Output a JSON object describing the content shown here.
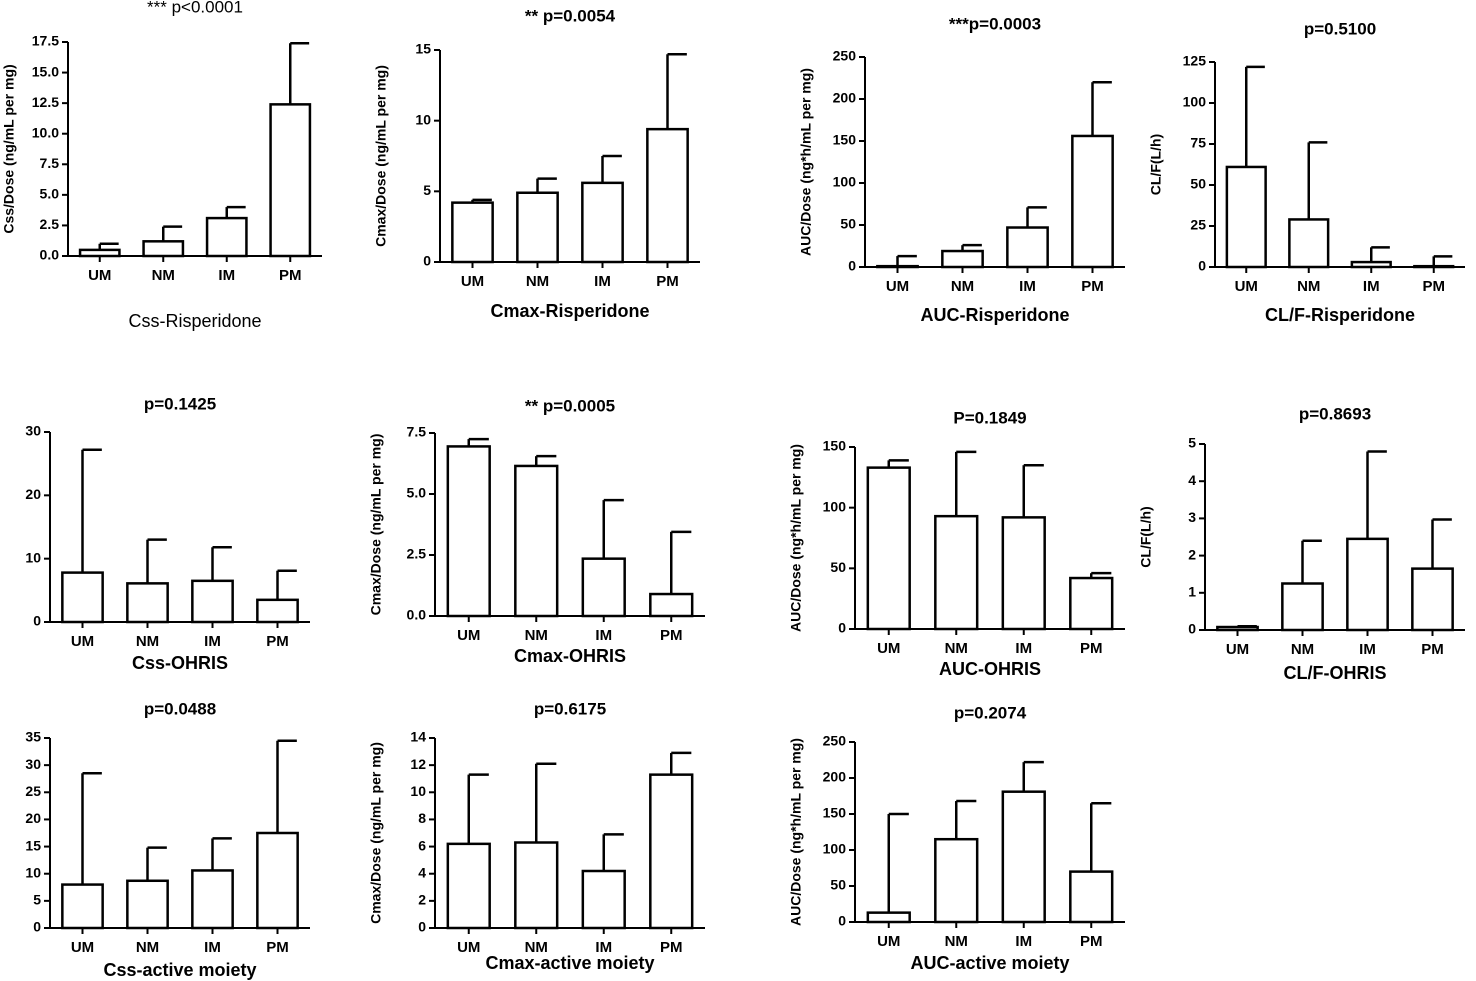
{
  "chart_data": [
    {
      "type": "bar",
      "title": "***  p<0.0001",
      "x_label": "Css-Risperidone",
      "y_label": "Css/Dose (ng/mL per mg)",
      "categories": [
        "UM",
        "NM",
        "IM",
        "PM"
      ],
      "values": [
        0.5,
        1.2,
        3.1,
        12.4
      ],
      "errors": [
        0.5,
        1.2,
        0.9,
        5.0
      ],
      "ylim": [
        0,
        17.5
      ],
      "yticks": [
        {
          "value": 0,
          "label": "0.0"
        },
        2.5,
        {
          "value": 5,
          "label": "5.0"
        },
        7.5,
        {
          "value": 10,
          "label": "10.0"
        },
        12.5,
        {
          "value": 15,
          "label": "15.0"
        },
        17.5
      ]
    },
    {
      "type": "bar",
      "title": "** p=0.0054",
      "x_label": "Cmax-Risperidone",
      "y_label": "Cmax/Dose (ng/mL per mg)",
      "categories": [
        "UM",
        "NM",
        "IM",
        "PM"
      ],
      "values": [
        4.2,
        4.9,
        5.6,
        9.4
      ],
      "errors": [
        0.2,
        1.0,
        1.9,
        5.3
      ],
      "ylim": [
        0,
        15
      ],
      "yticks": [
        0,
        5,
        10,
        15
      ]
    },
    {
      "type": "bar",
      "title": "***p=0.0003",
      "x_label": "AUC-Risperidone",
      "y_label": "AUC/Dose (ng*h/mL per mg)",
      "categories": [
        "UM",
        "NM",
        "IM",
        "PM"
      ],
      "values": [
        1,
        19,
        47,
        156
      ],
      "errors": [
        12,
        7,
        24,
        64
      ],
      "ylim": [
        0,
        250
      ],
      "yticks": [
        0,
        50,
        100,
        150,
        200,
        250
      ]
    },
    {
      "type": "bar",
      "title": "p=0.5100",
      "x_label": "CL/F-Risperidone",
      "y_label": "CL/F(L/h)",
      "categories": [
        "UM",
        "NM",
        "IM",
        "PM"
      ],
      "values": [
        61,
        29,
        3,
        0.5
      ],
      "errors": [
        61,
        47,
        9,
        6
      ],
      "ylim": [
        0,
        125
      ],
      "yticks": [
        0,
        25,
        50,
        75,
        100,
        125
      ]
    },
    {
      "type": "bar",
      "title": "p=0.1425",
      "x_label": "Css-OHRIS",
      "y_label": "Css/Dose (ng/mL per mg)",
      "categories": [
        "UM",
        "NM",
        "IM",
        "PM"
      ],
      "values": [
        7.8,
        6.1,
        6.5,
        3.5
      ],
      "errors": [
        19.4,
        6.9,
        5.3,
        4.6
      ],
      "ylim": [
        0,
        30
      ],
      "yticks": [
        0,
        10,
        20,
        30
      ]
    },
    {
      "type": "bar",
      "title": "** p=0.0005",
      "x_label": "Cmax-OHRIS",
      "y_label": "Cmax/Dose (ng/mL per mg)",
      "categories": [
        "UM",
        "NM",
        "IM",
        "PM"
      ],
      "values": [
        6.95,
        6.15,
        2.35,
        0.9
      ],
      "errors": [
        0.3,
        0.4,
        2.4,
        2.55
      ],
      "ylim": [
        0,
        7.5
      ],
      "yticks": [
        {
          "value": 0,
          "label": "0.0"
        },
        2.5,
        {
          "value": 5,
          "label": "5.0"
        },
        7.5
      ]
    },
    {
      "type": "bar",
      "title": "P=0.1849",
      "x_label": "AUC-OHRIS",
      "y_label": "AUC/Dose (ng*h/mL per mg)",
      "categories": [
        "UM",
        "NM",
        "IM",
        "PM"
      ],
      "values": [
        133,
        93,
        92,
        42
      ],
      "errors": [
        6,
        53,
        43,
        4
      ],
      "ylim": [
        0,
        150
      ],
      "yticks": [
        0,
        50,
        100,
        150
      ]
    },
    {
      "type": "bar",
      "title": "p=0.8693",
      "x_label": "CL/F-OHRIS",
      "y_label": "CL/F(L/h)",
      "categories": [
        "UM",
        "NM",
        "IM",
        "PM"
      ],
      "values": [
        0.08,
        1.25,
        2.45,
        1.65
      ],
      "errors": [
        0.02,
        1.15,
        2.35,
        1.32
      ],
      "ylim": [
        0,
        5
      ],
      "yticks": [
        0,
        1,
        2,
        3,
        4,
        5
      ]
    },
    {
      "type": "bar",
      "title": "p=0.0488",
      "x_label": "Css-active moiety",
      "y_label": "Css/Dose (ng/mL per mg)",
      "categories": [
        "UM",
        "NM",
        "IM",
        "PM"
      ],
      "values": [
        8,
        8.7,
        10.6,
        17.5
      ],
      "errors": [
        20.5,
        6.1,
        5.9,
        17
      ],
      "ylim": [
        0,
        35
      ],
      "yticks": [
        0,
        5,
        10,
        15,
        20,
        25,
        30,
        35
      ]
    },
    {
      "type": "bar",
      "title": "p=0.6175",
      "x_label": "Cmax-active moiety",
      "y_label": "Cmax/Dose (ng/mL per mg)",
      "categories": [
        "UM",
        "NM",
        "IM",
        "PM"
      ],
      "values": [
        6.2,
        6.3,
        4.2,
        11.3
      ],
      "errors": [
        5.1,
        5.8,
        2.7,
        1.6
      ],
      "ylim": [
        0,
        14
      ],
      "yticks": [
        0,
        2,
        4,
        6,
        8,
        10,
        12,
        14
      ]
    },
    {
      "type": "bar",
      "title": "p=0.2074",
      "x_label": "AUC-active moiety",
      "y_label": "AUC/Dose (ng*h/mL per mg)",
      "categories": [
        "UM",
        "NM",
        "IM",
        "PM"
      ],
      "values": [
        13,
        115,
        181,
        70
      ],
      "errors": [
        137,
        53,
        41,
        95
      ],
      "ylim": [
        0,
        250
      ],
      "yticks": [
        0,
        50,
        100,
        150,
        200,
        250
      ]
    }
  ]
}
